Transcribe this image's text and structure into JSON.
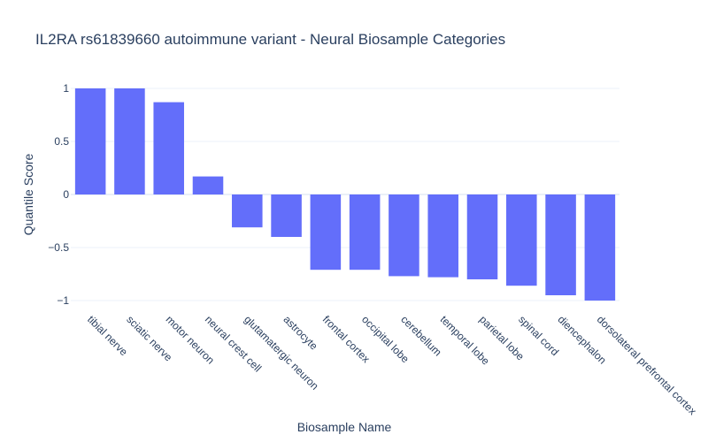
{
  "chart_data": {
    "type": "bar",
    "title": "IL2RA rs61839660 autoimmune variant - Neural Biosample Categories",
    "xlabel": "Biosample Name",
    "ylabel": "Quantile Score",
    "categories": [
      "tibial nerve",
      "sciatic nerve",
      "motor neuron",
      "neural crest cell",
      "glutamatergic neuron",
      "astrocyte",
      "frontal cortex",
      "occipital lobe",
      "cerebellum",
      "temporal lobe",
      "parietal lobe",
      "spinal cord",
      "diencephalon",
      "dorsolateral prefrontal cortex"
    ],
    "values": [
      1.0,
      1.0,
      0.87,
      0.17,
      -0.31,
      -0.4,
      -0.71,
      -0.71,
      -0.77,
      -0.78,
      -0.8,
      -0.86,
      -0.95,
      -1.0
    ],
    "ylim": [
      -1.1,
      1.1
    ],
    "yticks": [
      1,
      0.5,
      0,
      -0.5,
      -1
    ],
    "ytick_labels": [
      "1",
      "0.5",
      "0",
      "−0.5",
      "−1"
    ],
    "grid": true,
    "bar_color": "#636efa"
  }
}
